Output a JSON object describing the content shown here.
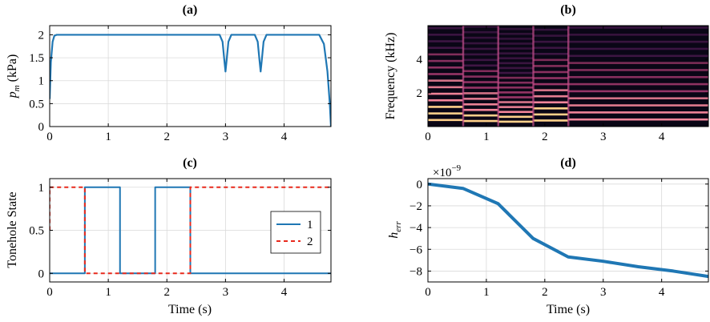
{
  "chart_data": [
    {
      "id": "a",
      "type": "line",
      "title": "(a)",
      "xlabel": "",
      "ylabel": "p_m (kPa)",
      "xlim": [
        0,
        4.8
      ],
      "ylim": [
        0,
        2.2
      ],
      "xticks": [
        0,
        1,
        2,
        3,
        4
      ],
      "yticks": [
        0,
        0.5,
        1,
        1.5,
        2
      ],
      "xtick_labels": [
        "0",
        "1",
        "2",
        "3",
        "4"
      ],
      "ytick_labels": [
        "0",
        "0.5",
        "1",
        "1.5",
        "2"
      ],
      "grid": true,
      "series": [
        {
          "color": "#1f77b4",
          "x": [
            0,
            0.02,
            0.05,
            0.08,
            0.12,
            2.9,
            2.95,
            2.98,
            3.0,
            3.02,
            3.05,
            3.1,
            3.5,
            3.55,
            3.58,
            3.6,
            3.62,
            3.65,
            3.7,
            4.6,
            4.68,
            4.74,
            4.78,
            4.8
          ],
          "y": [
            0.6,
            1.4,
            1.85,
            1.98,
            2.0,
            2.0,
            1.85,
            1.45,
            1.2,
            1.45,
            1.85,
            2.0,
            2.0,
            1.85,
            1.45,
            1.2,
            1.45,
            1.85,
            2.0,
            2.0,
            1.8,
            1.2,
            0.5,
            0.0
          ]
        }
      ]
    },
    {
      "id": "b",
      "type": "heatmap",
      "title": "(b)",
      "xlabel": "",
      "ylabel": "Frequency (kHz)",
      "xlim": [
        0,
        4.8
      ],
      "ylim": [
        0,
        6
      ],
      "xticks": [
        0,
        1,
        2,
        3,
        4
      ],
      "yticks": [
        2,
        4
      ],
      "xtick_labels": [
        "0",
        "1",
        "2",
        "3",
        "4"
      ],
      "ytick_labels": [
        "2",
        "4"
      ],
      "note_boundaries": [
        0.6,
        1.2,
        1.8,
        2.4
      ],
      "segment_fundamentals_khz": [
        0.39,
        0.33,
        0.29,
        0.36,
        0.42
      ],
      "segment_brightness": [
        0.95,
        0.85,
        0.8,
        0.9,
        0.7
      ]
    },
    {
      "id": "c",
      "type": "line",
      "title": "(c)",
      "xlabel": "Time (s)",
      "ylabel": "Tonehole State",
      "xlim": [
        0,
        4.8
      ],
      "ylim": [
        -0.1,
        1.1
      ],
      "xticks": [
        0,
        1,
        2,
        3,
        4
      ],
      "yticks": [
        0,
        0.5,
        1
      ],
      "xtick_labels": [
        "0",
        "1",
        "2",
        "3",
        "4"
      ],
      "ytick_labels": [
        "0",
        "0.5",
        "1"
      ],
      "grid": true,
      "legend": "right",
      "series": [
        {
          "name": "1",
          "color": "#1f77b4",
          "dash": "",
          "x": [
            0,
            0.6,
            0.6,
            1.2,
            1.2,
            1.8,
            1.8,
            2.4,
            2.4,
            4.8
          ],
          "y": [
            0,
            0,
            1,
            1,
            0,
            0,
            1,
            1,
            0,
            0
          ]
        },
        {
          "name": "2",
          "color": "#e8291c",
          "dash": "5,4",
          "x": [
            0,
            0.0,
            0.6,
            0.6,
            2.4,
            2.4,
            4.8
          ],
          "y": [
            0.5,
            1,
            1,
            0,
            0,
            1,
            1
          ]
        }
      ]
    },
    {
      "id": "d",
      "type": "line",
      "title": "(d)",
      "xlabel": "Time (s)",
      "ylabel": "h_err",
      "multiplier": "×10^-9",
      "xlim": [
        0,
        4.8
      ],
      "ylim": [
        -9,
        0.5
      ],
      "xticks": [
        0,
        1,
        2,
        3,
        4
      ],
      "yticks": [
        0,
        -2,
        -4,
        -6,
        -8
      ],
      "xtick_labels": [
        "0",
        "1",
        "2",
        "3",
        "4"
      ],
      "ytick_labels": [
        "0",
        "−2",
        "−4",
        "−6",
        "−8"
      ],
      "grid": true,
      "series": [
        {
          "color": "#1f77b4",
          "x": [
            0,
            0.6,
            1.2,
            1.8,
            2.4,
            3.0,
            3.6,
            4.2,
            4.8
          ],
          "y": [
            0,
            -0.4,
            -1.8,
            -5.0,
            -6.7,
            -7.1,
            -7.6,
            -8.0,
            -8.5
          ]
        }
      ]
    }
  ]
}
